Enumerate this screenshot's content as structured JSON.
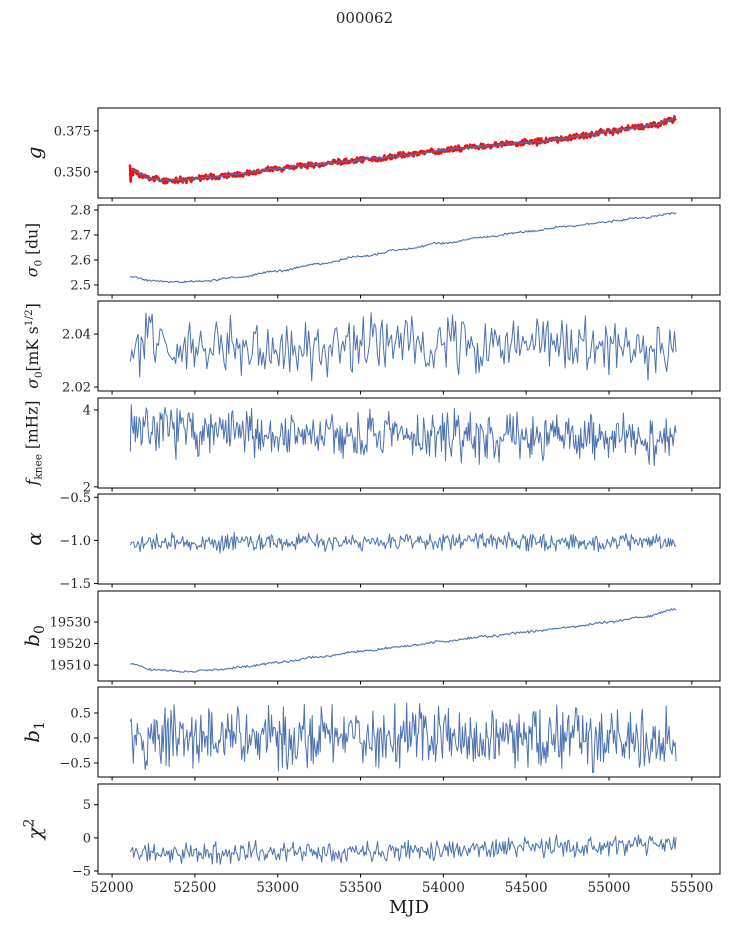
{
  "chart_data": {
    "type": "line",
    "title": "000062",
    "xlabel": "MJD",
    "xlim": [
      51915,
      55670
    ],
    "xticks": [
      52000,
      52500,
      53000,
      53500,
      54000,
      54500,
      55000,
      55500
    ],
    "xtick_labels": [
      "52000",
      "52500",
      "53000",
      "53500",
      "54000",
      "54500",
      "55000",
      "55500"
    ],
    "x_data_range": [
      52110,
      55405
    ],
    "legend": "none",
    "grid": false,
    "panels": [
      {
        "id": "g",
        "ylabel_text": "g",
        "ylabel_segments": [
          {
            "t": "g",
            "s": "i"
          }
        ],
        "ylim": [
          0.334,
          0.389
        ],
        "yticks": [
          0.35,
          0.375
        ],
        "ytick_labels": [
          "0.350",
          "0.375"
        ],
        "series": [
          {
            "name": "gain-raw",
            "color": "#ee1111",
            "lw": 2.6,
            "n": 900,
            "sigma": 0.0009,
            "seed": 3,
            "anchors": [
              [
                52108,
                0.355
              ],
              [
                52111,
                0.3438
              ],
              [
                52114,
                0.3545
              ],
              [
                52117,
                0.3442
              ],
              [
                52121,
                0.353
              ],
              [
                52126,
                0.3495
              ],
              [
                52140,
                0.3502
              ],
              [
                52165,
                0.348
              ],
              [
                52230,
                0.3457
              ],
              [
                52310,
                0.3447
              ],
              [
                52450,
                0.3452
              ],
              [
                52600,
                0.3467
              ],
              [
                52800,
                0.3491
              ],
              [
                53000,
                0.3519
              ],
              [
                53200,
                0.3541
              ],
              [
                53400,
                0.3562
              ],
              [
                53600,
                0.3583
              ],
              [
                53800,
                0.3606
              ],
              [
                53950,
                0.3625
              ],
              [
                54100,
                0.3645
              ],
              [
                54250,
                0.3657
              ],
              [
                54400,
                0.3672
              ],
              [
                54550,
                0.3682
              ],
              [
                54700,
                0.3701
              ],
              [
                54850,
                0.3722
              ],
              [
                55000,
                0.3747
              ],
              [
                55150,
                0.3768
              ],
              [
                55280,
                0.3788
              ],
              [
                55350,
                0.3808
              ],
              [
                55375,
                0.3828
              ],
              [
                55385,
                0.3795
              ],
              [
                55393,
                0.3833
              ],
              [
                55405,
                0.383
              ]
            ]
          },
          {
            "name": "gain-fit",
            "color": "#4c72b0",
            "lw": 1.2,
            "n": 450,
            "sigma": 0.00045,
            "seed": 4,
            "anchors": [
              [
                52112,
                0.3525
              ],
              [
                52145,
                0.3501
              ],
              [
                52175,
                0.3481
              ],
              [
                52235,
                0.3458
              ],
              [
                52310,
                0.3447
              ],
              [
                52450,
                0.3452
              ],
              [
                52600,
                0.3467
              ],
              [
                52800,
                0.3491
              ],
              [
                53000,
                0.3519
              ],
              [
                53200,
                0.3541
              ],
              [
                53400,
                0.3562
              ],
              [
                53600,
                0.3583
              ],
              [
                53800,
                0.3606
              ],
              [
                53950,
                0.3625
              ],
              [
                54100,
                0.3645
              ],
              [
                54250,
                0.3657
              ],
              [
                54400,
                0.3672
              ],
              [
                54550,
                0.3682
              ],
              [
                54700,
                0.3701
              ],
              [
                54850,
                0.3722
              ],
              [
                55000,
                0.3747
              ],
              [
                55150,
                0.3768
              ],
              [
                55280,
                0.3788
              ],
              [
                55360,
                0.3812
              ],
              [
                55405,
                0.3832
              ]
            ]
          }
        ]
      },
      {
        "id": "sigma0_du",
        "ylabel_text": "σ0 [du]",
        "ylabel_segments": [
          {
            "t": "σ",
            "s": "i"
          },
          {
            "t": "0",
            "s": "sub"
          },
          {
            "t": " [du]",
            "s": "n"
          }
        ],
        "ylim": [
          2.46,
          2.82
        ],
        "yticks": [
          2.5,
          2.6,
          2.7,
          2.8
        ],
        "ytick_labels": [
          "2.5",
          "2.6",
          "2.7",
          "2.8"
        ],
        "series": [
          {
            "name": "sigma0-du",
            "color": "#4c72b0",
            "lw": 1.1,
            "n": 450,
            "sigma": 0.0022,
            "seed": 5,
            "anchors": [
              [
                52110,
                2.533
              ],
              [
                52250,
                2.5165
              ],
              [
                52380,
                2.512
              ],
              [
                52550,
                2.516
              ],
              [
                52750,
                2.531
              ],
              [
                53000,
                2.556
              ],
              [
                53250,
                2.585
              ],
              [
                53500,
                2.614
              ],
              [
                53750,
                2.642
              ],
              [
                54000,
                2.668
              ],
              [
                54250,
                2.692
              ],
              [
                54500,
                2.714
              ],
              [
                54750,
                2.734
              ],
              [
                55000,
                2.754
              ],
              [
                55200,
                2.77
              ],
              [
                55405,
                2.788
              ]
            ]
          }
        ]
      },
      {
        "id": "sigma0_mk",
        "ylabel_text": "σ0 [mK s^1/2]",
        "ylabel_segments": [
          {
            "t": "σ",
            "s": "i"
          },
          {
            "t": "0",
            "s": "sub"
          },
          {
            "t": "[mK s",
            "s": "n"
          },
          {
            "t": "1/2",
            "s": "sup"
          },
          {
            "t": "]",
            "s": "n"
          }
        ],
        "ylim": [
          2.0185,
          2.0525
        ],
        "yticks": [
          2.02,
          2.04
        ],
        "ytick_labels": [
          "2.02",
          "2.04"
        ],
        "series": [
          {
            "name": "sigma0-mk",
            "color": "#4c72b0",
            "lw": 1.0,
            "n": 350,
            "sigma": 0.0053,
            "seed": 6,
            "anchors": [
              [
                52110,
                2.0358
              ],
              [
                52600,
                2.0362
              ],
              [
                52900,
                2.034
              ],
              [
                53100,
                2.0325
              ],
              [
                53400,
                2.0355
              ],
              [
                53800,
                2.0365
              ],
              [
                54200,
                2.0358
              ],
              [
                54600,
                2.036
              ],
              [
                54900,
                2.0348
              ],
              [
                55200,
                2.0338
              ],
              [
                55405,
                2.0332
              ]
            ]
          }
        ]
      },
      {
        "id": "f_knee",
        "ylabel_text": "f_knee [mHz]",
        "ylabel_segments": [
          {
            "t": "f",
            "s": "i"
          },
          {
            "t": "knee",
            "s": "sub"
          },
          {
            "t": " [mHz]",
            "s": "n"
          }
        ],
        "ylim": [
          1.97,
          4.31
        ],
        "yticks": [
          2,
          4
        ],
        "ytick_labels": [
          "2",
          "4"
        ],
        "series": [
          {
            "name": "f-knee",
            "color": "#4c72b0",
            "lw": 1.0,
            "n": 550,
            "sigma": 0.31,
            "seed": 7,
            "anchors": [
              [
                52110,
                3.62
              ],
              [
                52350,
                3.45
              ],
              [
                52700,
                3.38
              ],
              [
                53100,
                3.34
              ],
              [
                53600,
                3.3
              ],
              [
                54100,
                3.32
              ],
              [
                54600,
                3.28
              ],
              [
                55000,
                3.26
              ],
              [
                55405,
                3.22
              ]
            ]
          }
        ]
      },
      {
        "id": "alpha",
        "ylabel_text": "α",
        "ylabel_segments": [
          {
            "t": "α",
            "s": "i"
          }
        ],
        "ylim": [
          -1.505,
          -0.462
        ],
        "yticks": [
          -0.5,
          -1.0,
          -1.5
        ],
        "ytick_labels": [
          "−0.5",
          "−1.0",
          "−1.5"
        ],
        "series": [
          {
            "name": "alpha",
            "color": "#4c72b0",
            "lw": 1.0,
            "n": 500,
            "sigma": 0.052,
            "seed": 8,
            "anchors": [
              [
                52110,
                -1.025
              ],
              [
                53000,
                -1.02
              ],
              [
                54000,
                -1.015
              ],
              [
                55000,
                -1.02
              ],
              [
                55405,
                -1.018
              ]
            ]
          }
        ]
      },
      {
        "id": "b0",
        "ylabel_text": "b0",
        "ylabel_segments": [
          {
            "t": "b",
            "s": "i"
          },
          {
            "t": "0",
            "s": "sub"
          }
        ],
        "ylim": [
          19502.6,
          19544.4
        ],
        "yticks": [
          19510,
          19520,
          19530
        ],
        "ytick_labels": [
          "19510",
          "19520",
          "19530"
        ],
        "series": [
          {
            "name": "b0",
            "color": "#4c72b0",
            "lw": 1.1,
            "n": 450,
            "sigma": 0.28,
            "seed": 9,
            "anchors": [
              [
                52110,
                19510.5
              ],
              [
                52250,
                19507.8
              ],
              [
                52420,
                19506.9
              ],
              [
                52600,
                19507.6
              ],
              [
                52800,
                19509.2
              ],
              [
                53000,
                19511.2
              ],
              [
                53250,
                19513.8
              ],
              [
                53500,
                19516.3
              ],
              [
                53750,
                19518.6
              ],
              [
                54000,
                19521.0
              ],
              [
                54250,
                19523.2
              ],
              [
                54500,
                19525.4
              ],
              [
                54750,
                19527.6
              ],
              [
                55000,
                19530.0
              ],
              [
                55200,
                19532.3
              ],
              [
                55405,
                19535.8
              ]
            ]
          }
        ]
      },
      {
        "id": "b1",
        "ylabel_text": "b1",
        "ylabel_segments": [
          {
            "t": "b",
            "s": "i"
          },
          {
            "t": "1",
            "s": "sub"
          }
        ],
        "ylim": [
          -0.78,
          1.02
        ],
        "yticks": [
          0.5,
          0.0,
          -0.5
        ],
        "ytick_labels": [
          "0.5",
          "0.0",
          "−0.5"
        ],
        "series": [
          {
            "name": "b1",
            "color": "#4c72b0",
            "lw": 1.0,
            "n": 550,
            "sigma": 0.3,
            "seed": 10,
            "anchors": [
              [
                52110,
                0.02
              ],
              [
                53000,
                0.0
              ],
              [
                54000,
                0.01
              ],
              [
                55000,
                0.0
              ],
              [
                55405,
                0.0
              ]
            ]
          }
        ]
      },
      {
        "id": "chi2",
        "ylabel_text": "χ2",
        "ylabel_segments": [
          {
            "t": "χ",
            "s": "i"
          },
          {
            "t": "2",
            "s": "sup"
          }
        ],
        "ylim": [
          -5.45,
          8.13
        ],
        "yticks": [
          5,
          0,
          -5
        ],
        "ytick_labels": [
          "5",
          "0",
          "−5"
        ],
        "series": [
          {
            "name": "chi2",
            "color": "#4c72b0",
            "lw": 1.0,
            "n": 480,
            "sigma": 0.78,
            "seed": 11,
            "anchors": [
              [
                52110,
                -2.2
              ],
              [
                52500,
                -2.35
              ],
              [
                52900,
                -2.1
              ],
              [
                53300,
                -2.0
              ],
              [
                53700,
                -1.85
              ],
              [
                54100,
                -1.6
              ],
              [
                54500,
                -1.4
              ],
              [
                54900,
                -1.3
              ],
              [
                55200,
                -1.15
              ],
              [
                55405,
                -0.9
              ]
            ]
          }
        ]
      }
    ]
  }
}
